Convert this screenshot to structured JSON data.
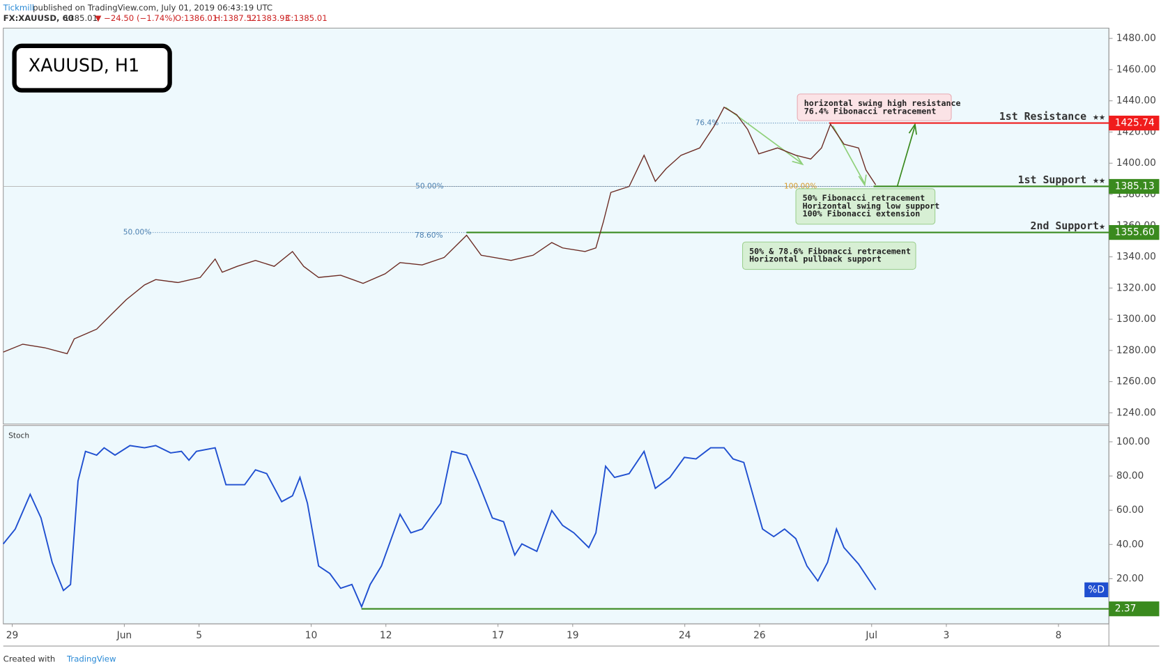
{
  "header": {
    "brand": "Tickmill",
    "published": "published on TradingView.com, July 01, 2019 06:43:19 UTC",
    "symbol": "FX:XAUUSD, 60",
    "last": "1385.01",
    "change": "▼ −24.50 (−1.74%)",
    "open": "O:1386.01",
    "high": "H:1387.52",
    "low": "L:1383.93",
    "close": "C:1385.01"
  },
  "badge": "XAUUSD, H1",
  "footer": {
    "created": "Created with",
    "brand": "TradingView"
  },
  "chart_data": [
    {
      "type": "line",
      "name": "XAUUSD",
      "color": "#6b2a22",
      "x": [
        -0.24,
        0.28,
        0.87,
        1.47,
        1.66,
        2.26,
        2.65,
        3.05,
        3.54,
        3.84,
        4.44,
        5.03,
        5.43,
        5.62,
        6.02,
        6.51,
        7.01,
        7.5,
        7.8,
        8.2,
        8.79,
        9.39,
        9.98,
        10.38,
        10.97,
        11.56,
        12.16,
        12.55,
        13.35,
        13.94,
        14.44,
        14.73,
        15.33,
        15.62,
        15.82,
        16.02,
        16.51,
        16.91,
        17.21,
        17.5,
        17.9,
        18.4,
        18.79,
        19.05,
        19.39,
        19.68,
        19.98,
        20.48,
        20.97,
        21.37,
        21.66,
        21.9,
        22.26,
        22.65,
        22.85,
        23.11
      ],
      "values": [
        1278.9,
        1284,
        1281.7,
        1277.9,
        1287.4,
        1293.6,
        1303,
        1312.5,
        1322,
        1325.4,
        1323.5,
        1326.8,
        1338.6,
        1330.1,
        1333.9,
        1337.7,
        1333.9,
        1343.4,
        1333.9,
        1326.8,
        1328.2,
        1323,
        1329.1,
        1336.3,
        1334.8,
        1339.6,
        1353.8,
        1341,
        1337.7,
        1341,
        1349.1,
        1345.7,
        1343.4,
        1345.7,
        1362.4,
        1381.3,
        1385.1,
        1405.1,
        1388.4,
        1396.5,
        1405.1,
        1409.8,
        1424,
        1435.9,
        1431.1,
        1421.7,
        1406,
        1409.8,
        1405.1,
        1402.7,
        1409.8,
        1425,
        1412.2,
        1409.8,
        1395.6,
        1386.1
      ],
      "xlim": [
        -0.24,
        29.35
      ],
      "ylim": [
        1232.8,
        1486.6
      ],
      "yticks": [
        {
          "value": 1240,
          "label": "1240.00"
        },
        {
          "value": 1260,
          "label": "1260.00"
        },
        {
          "value": 1280,
          "label": "1280.00"
        },
        {
          "value": 1300,
          "label": "1300.00"
        },
        {
          "value": 1320,
          "label": "1320.00"
        },
        {
          "value": 1340,
          "label": "1340.00"
        },
        {
          "value": 1360,
          "label": "1360.00"
        },
        {
          "value": 1380,
          "label": "1380.00"
        },
        {
          "value": 1400,
          "label": "1400.00"
        },
        {
          "value": 1420,
          "label": "1420.00"
        },
        {
          "value": 1440,
          "label": "1440.00"
        },
        {
          "value": 1460,
          "label": "1460.00"
        },
        {
          "value": 1480,
          "label": "1480.00"
        }
      ],
      "levels": [
        {
          "name": "1st Resistance ★★",
          "value": 1425.74,
          "color": "#f01c1c"
        },
        {
          "name": "1st Support ★★",
          "value": 1385.13,
          "color": "#3a8a1e"
        },
        {
          "name": "2nd Support★",
          "value": 1355.6,
          "label": "1355.60",
          "color": "#3a8a1e"
        }
      ],
      "fib_labels": [
        "76.4%",
        "50.00%",
        "100.00%",
        "78.60%",
        "50.00%"
      ],
      "annotations": [
        {
          "lines": [
            "horizontal swing high resistance",
            "76.4% Fibonacci retracement"
          ],
          "color": "#fbe3e6"
        },
        {
          "lines": [
            "50% Fibonacci retracement",
            "Horizontal swing low support",
            "100% Fibonacci extension"
          ],
          "color": "#d7efd4"
        },
        {
          "lines": [
            "50% & 78.6% Fibonacci retracement",
            "Horizontal pullback support"
          ],
          "color": "#d7efd4"
        }
      ]
    },
    {
      "type": "line",
      "name": "Stoch",
      "color": "#1f4fd0",
      "series_label": "%D",
      "x": [
        -0.24,
        0.08,
        0.48,
        0.77,
        1.07,
        1.37,
        1.56,
        1.76,
        1.96,
        2.26,
        2.46,
        2.75,
        3.15,
        3.54,
        3.84,
        4.24,
        4.53,
        4.73,
        4.93,
        5.43,
        5.72,
        6.22,
        6.51,
        6.81,
        7.21,
        7.5,
        7.7,
        7.9,
        8.2,
        8.5,
        8.79,
        9.09,
        9.35,
        9.58,
        9.88,
        10.38,
        10.67,
        10.97,
        11.47,
        11.76,
        12.16,
        12.46,
        12.85,
        13.15,
        13.45,
        13.64,
        14.04,
        14.44,
        14.73,
        15.03,
        15.43,
        15.62,
        15.88,
        16.12,
        16.51,
        16.91,
        17.21,
        17.6,
        17.99,
        18.3,
        18.69,
        19.05,
        19.29,
        19.58,
        20.08,
        20.38,
        20.67,
        20.97,
        21.27,
        21.56,
        21.82,
        22.06,
        22.26,
        22.65,
        23.11
      ],
      "values": [
        40.3,
        49,
        69.3,
        55.5,
        29.5,
        13.1,
        16.6,
        77.1,
        94.4,
        92.2,
        96.5,
        92.2,
        97.8,
        96.5,
        97.8,
        93.5,
        94.4,
        89.2,
        94.4,
        96.5,
        74.9,
        74.9,
        83.6,
        81.4,
        65,
        68.4,
        79.2,
        64.1,
        27.4,
        23,
        14.4,
        16.6,
        3.6,
        16.6,
        27.4,
        57.6,
        46.8,
        49,
        64.1,
        94.4,
        92.2,
        77.1,
        55.5,
        53.3,
        33.8,
        40.3,
        36,
        59.8,
        51.1,
        46.8,
        38.2,
        46.8,
        85.7,
        79.2,
        81.4,
        94.4,
        72.8,
        79.2,
        90.9,
        90,
        96.5,
        96.5,
        90,
        87.9,
        49,
        44.6,
        49,
        43.4,
        27.4,
        18.7,
        29.5,
        49,
        38.2,
        28.6,
        13.5
      ],
      "xlim": [
        -0.24,
        29.35
      ],
      "ylim": [
        -6.4,
        109.5
      ],
      "yticks": [
        {
          "value": 20,
          "label": "20.00"
        },
        {
          "value": 40,
          "label": "40.00"
        },
        {
          "value": 60,
          "label": "60.00"
        },
        {
          "value": 80,
          "label": "80.00"
        },
        {
          "value": 100,
          "label": "100.00"
        }
      ],
      "levels": [
        {
          "value": 2.37,
          "color": "#3a8a1e"
        }
      ],
      "xticks": [
        {
          "value": 0,
          "label": "29"
        },
        {
          "value": 3,
          "label": "Jun"
        },
        {
          "value": 5,
          "label": "5"
        },
        {
          "value": 8,
          "label": "10"
        },
        {
          "value": 10,
          "label": "12"
        },
        {
          "value": 13,
          "label": "17"
        },
        {
          "value": 15,
          "label": "19"
        },
        {
          "value": 18,
          "label": "24"
        },
        {
          "value": 20,
          "label": "26"
        },
        {
          "value": 23,
          "label": "Jul"
        },
        {
          "value": 25,
          "label": "3"
        },
        {
          "value": 28,
          "label": "8"
        }
      ]
    }
  ]
}
